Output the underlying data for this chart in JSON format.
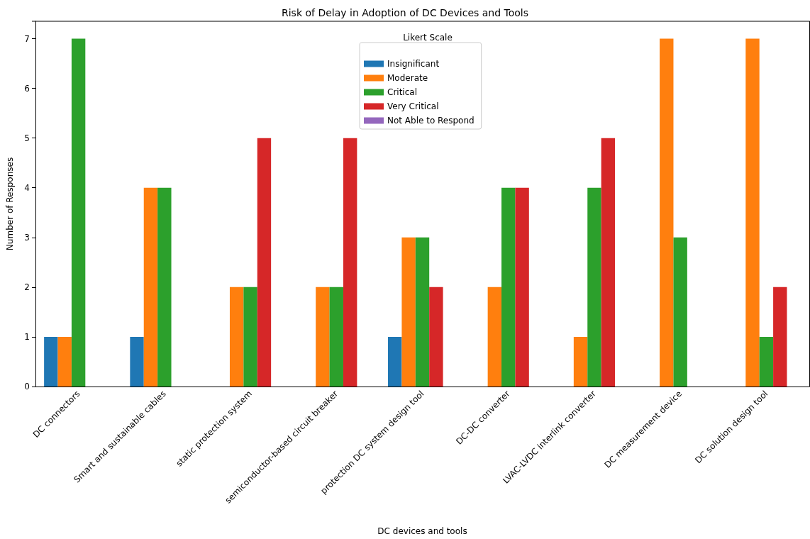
{
  "chart_data": {
    "type": "bar",
    "title": "Risk of Delay in Adoption of DC Devices and Tools",
    "xlabel": "DC devices and tools",
    "ylabel": "Number of Responses",
    "legend_title": "Likert Scale",
    "categories": [
      "DC connectors",
      "Smart and sustainable cables",
      "static protection system",
      "semiconductor-based circuit breaker",
      "protection DC system design tool",
      "DC-DC converter",
      "LVAC-LVDC interlink converter",
      "DC measurement device",
      "DC solution design tool"
    ],
    "series": [
      {
        "name": "Insignificant",
        "color": "#1f77b4",
        "values": [
          1,
          1,
          0,
          0,
          1,
          0,
          0,
          0,
          0
        ]
      },
      {
        "name": "Moderate",
        "color": "#ff7f0e",
        "values": [
          1,
          4,
          2,
          2,
          3,
          2,
          1,
          7,
          7
        ]
      },
      {
        "name": "Critical",
        "color": "#2ca02c",
        "values": [
          7,
          4,
          2,
          2,
          3,
          4,
          4,
          3,
          1
        ]
      },
      {
        "name": "Very Critical",
        "color": "#d62728",
        "values": [
          0,
          0,
          5,
          5,
          2,
          4,
          5,
          0,
          2
        ]
      },
      {
        "name": "Not Able to Respond",
        "color": "#9467bd",
        "values": [
          0,
          0,
          0,
          0,
          0,
          0,
          0,
          0,
          0
        ]
      }
    ],
    "ylim": [
      0,
      7.35
    ],
    "yticks": [
      0,
      1,
      2,
      3,
      4,
      5,
      6,
      7
    ],
    "grid": false,
    "legend": "top"
  }
}
